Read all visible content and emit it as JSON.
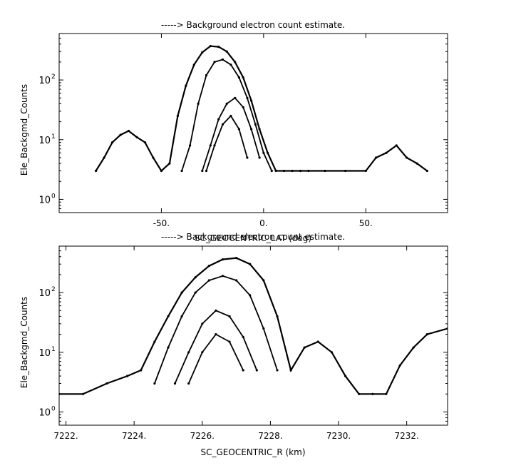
{
  "chart_data": [
    {
      "type": "scatter",
      "title": "-----> Background electron count estimate.",
      "xlabel": "SC_GEOCENTRIC_LAT (deg)",
      "ylabel": "Ele_Backgmd_Counts",
      "xlim": [
        -100,
        90
      ],
      "ylim": [
        0.6,
        600
      ],
      "yscale": "log",
      "xticks": [
        -50,
        0,
        50
      ],
      "xtick_labels": [
        "-50.",
        "0.",
        "50."
      ],
      "yticks": [
        1,
        10,
        100
      ],
      "ytick_labels": [
        "10",
        "10",
        "10"
      ],
      "ytick_exponents": [
        "0",
        "1",
        "2"
      ],
      "grid": false,
      "series": [
        {
          "x": [
            -82,
            -78,
            -74,
            -70,
            -66,
            -62,
            -58,
            -54,
            -50,
            -46,
            -42,
            -38,
            -34,
            -30,
            -26,
            -22,
            -18,
            -14,
            -10,
            -6,
            -2,
            2,
            6,
            10,
            14,
            18,
            22,
            30,
            40,
            50,
            55,
            60,
            65,
            70,
            75,
            80
          ],
          "y": [
            3,
            5,
            9,
            12,
            14,
            11,
            9,
            5,
            3,
            4,
            25,
            80,
            180,
            290,
            370,
            360,
            300,
            200,
            110,
            45,
            15,
            6,
            3,
            3,
            3,
            3,
            3,
            3,
            3,
            3,
            5,
            6,
            8,
            5,
            4,
            3
          ]
        },
        {
          "x": [
            -40,
            -36,
            -32,
            -28,
            -24,
            -20,
            -16,
            -12,
            -8,
            -4,
            0,
            4
          ],
          "y": [
            3,
            8,
            40,
            120,
            200,
            220,
            180,
            110,
            50,
            18,
            6,
            3
          ]
        },
        {
          "x": [
            -30,
            -26,
            -22,
            -18,
            -14,
            -10,
            -6,
            -2
          ],
          "y": [
            3,
            8,
            22,
            40,
            50,
            35,
            15,
            5
          ]
        },
        {
          "x": [
            -28,
            -24,
            -20,
            -16,
            -12,
            -8
          ],
          "y": [
            3,
            8,
            18,
            25,
            15,
            5
          ]
        }
      ]
    },
    {
      "type": "scatter",
      "title": "-----> Background electron count estimate.",
      "xlabel": "SC_GEOCENTRIC_R (km)",
      "ylabel": "Ele_Backgmd_Counts",
      "xlim": [
        7221.8,
        7233.2
      ],
      "ylim": [
        0.6,
        600
      ],
      "yscale": "log",
      "xticks": [
        7222,
        7224,
        7226,
        7228,
        7230,
        7232
      ],
      "xtick_labels": [
        "7222.",
        "7224.",
        "7226.",
        "7228.",
        "7230.",
        "7232."
      ],
      "yticks": [
        1,
        10,
        100
      ],
      "ytick_labels": [
        "10",
        "10",
        "10"
      ],
      "ytick_exponents": [
        "0",
        "1",
        "2"
      ],
      "grid": false,
      "series": [
        {
          "x": [
            7221.8,
            7222.5,
            7223.2,
            7223.8,
            7224.2,
            7224.6,
            7225.0,
            7225.4,
            7225.8,
            7226.2,
            7226.6,
            7227.0,
            7227.4,
            7227.8,
            7228.2,
            7228.6,
            7229.0,
            7229.4,
            7229.8,
            7230.2,
            7230.6,
            7231.0,
            7231.4,
            7231.8,
            7232.2,
            7232.6,
            7233.2
          ],
          "y": [
            2,
            2,
            3,
            4,
            5,
            15,
            40,
            100,
            180,
            280,
            360,
            380,
            300,
            160,
            40,
            5,
            12,
            15,
            10,
            4,
            2,
            2,
            2,
            6,
            12,
            20,
            25
          ]
        },
        {
          "x": [
            7224.6,
            7225.0,
            7225.4,
            7225.8,
            7226.2,
            7226.6,
            7227.0,
            7227.4,
            7227.8,
            7228.2
          ],
          "y": [
            3,
            12,
            40,
            100,
            160,
            190,
            160,
            90,
            25,
            5
          ]
        },
        {
          "x": [
            7225.2,
            7225.6,
            7226.0,
            7226.4,
            7226.8,
            7227.2,
            7227.6
          ],
          "y": [
            3,
            10,
            30,
            50,
            40,
            18,
            5
          ]
        },
        {
          "x": [
            7225.6,
            7226.0,
            7226.4,
            7226.8,
            7227.2
          ],
          "y": [
            3,
            10,
            20,
            15,
            5
          ]
        }
      ]
    }
  ]
}
